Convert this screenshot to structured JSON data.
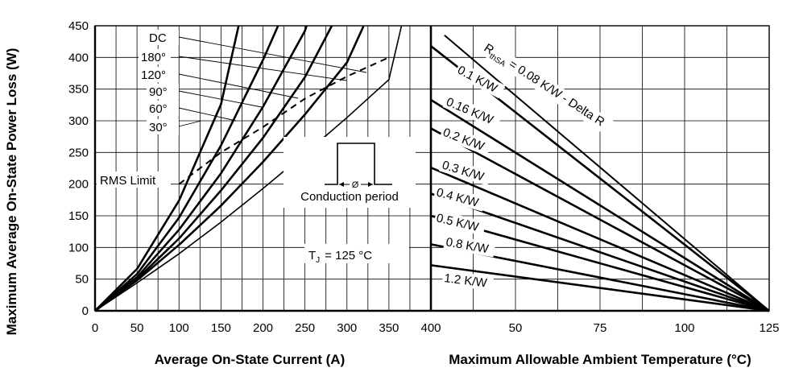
{
  "chart_data": [
    {
      "type": "line",
      "panel": "left",
      "xlabel": "Average On-State Current (A)",
      "ylabel": "Maximum Average On-State Power Loss (W)",
      "xlim": [
        0,
        400
      ],
      "ylim": [
        0,
        450
      ],
      "x_ticks": [
        "0",
        "50",
        "100",
        "150",
        "200",
        "250",
        "300",
        "350",
        "400"
      ],
      "y_ticks": [
        "0",
        "50",
        "100",
        "150",
        "200",
        "250",
        "300",
        "350",
        "400",
        "450"
      ],
      "grid": true,
      "series": [
        {
          "name": "30°",
          "x": [
            0,
            50,
            100,
            150,
            171
          ],
          "y": [
            0,
            66,
            174,
            326,
            450
          ]
        },
        {
          "name": "60°",
          "x": [
            0,
            50,
            100,
            150,
            200,
            218
          ],
          "y": [
            0,
            58,
            147,
            261,
            396,
            450
          ]
        },
        {
          "name": "90°",
          "x": [
            0,
            50,
            100,
            150,
            200,
            250,
            252
          ],
          "y": [
            0,
            53,
            128,
            217,
            322,
            442,
            450
          ]
        },
        {
          "name": "120°",
          "x": [
            0,
            50,
            100,
            150,
            200,
            250,
            282
          ],
          "y": [
            0,
            50,
            114,
            190,
            273,
            369,
            450
          ]
        },
        {
          "name": "180°",
          "x": [
            0,
            50,
            100,
            150,
            200,
            250,
            300,
            320
          ],
          "y": [
            0,
            48,
            104,
            166,
            235,
            310,
            392,
            450
          ]
        },
        {
          "name": "DC",
          "x": [
            0,
            50,
            100,
            150,
            200,
            250,
            300,
            350,
            365
          ],
          "y": [
            0,
            44,
            90,
            140,
            193,
            248,
            305,
            365,
            450
          ]
        },
        {
          "name": "RMS Limit",
          "x": [
            100,
            150,
            200,
            250,
            300,
            350
          ],
          "y": [
            200,
            250,
            290,
            335,
            370,
            400
          ]
        }
      ],
      "annotations": [
        "DC",
        "180°",
        "120°",
        "90°",
        "60°",
        "30°",
        "RMS Limit",
        "Ø",
        "Conduction period",
        "T",
        "J",
        "= 125 °C"
      ]
    },
    {
      "type": "line",
      "panel": "right",
      "xlabel": "Maximum Allowable Ambient Temperature (°C)",
      "xlim": [
        25,
        125
      ],
      "ylim": [
        0,
        450
      ],
      "x_ticks": [
        "50",
        "75",
        "100",
        "125"
      ],
      "grid": true,
      "series": [
        {
          "name": "R thSA = 0.08 K/W - Delta R",
          "x": [
            29,
            125
          ],
          "y": [
            435,
            0
          ]
        },
        {
          "name": "0.1 K/W",
          "x": [
            25,
            125
          ],
          "y": [
            418,
            0
          ]
        },
        {
          "name": "0.16 K/W",
          "x": [
            25,
            125
          ],
          "y": [
            333,
            0
          ]
        },
        {
          "name": "0.2 K/W",
          "x": [
            25,
            125
          ],
          "y": [
            288,
            0
          ]
        },
        {
          "name": "0.3 K/W",
          "x": [
            25,
            125
          ],
          "y": [
            226,
            0
          ]
        },
        {
          "name": "0.4 K/W",
          "x": [
            25,
            125
          ],
          "y": [
            185,
            0
          ]
        },
        {
          "name": "0.5 K/W",
          "x": [
            25,
            125
          ],
          "y": [
            150,
            0
          ]
        },
        {
          "name": "0.8 K/W",
          "x": [
            25,
            125
          ],
          "y": [
            105,
            0
          ]
        },
        {
          "name": "1.2 K/W",
          "x": [
            25,
            125
          ],
          "y": [
            72,
            0
          ]
        }
      ],
      "label_parts": {
        "r": "R",
        "sub": "thSA",
        "rest": " = 0.08 K/W - Delta R"
      }
    }
  ]
}
